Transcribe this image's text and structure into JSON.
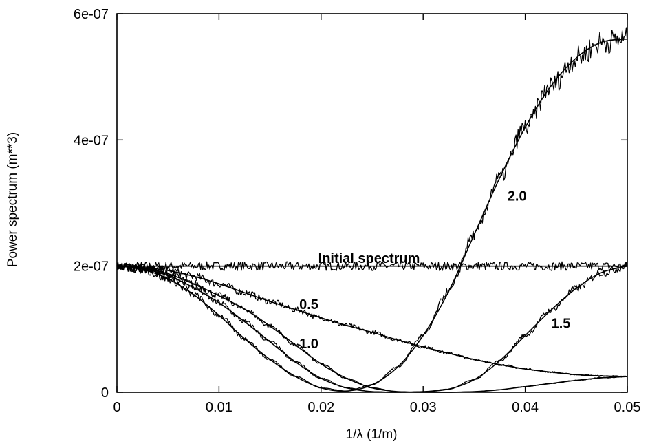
{
  "chart_data": {
    "type": "line",
    "title": "",
    "xlabel": "1/λ   (1/m)",
    "ylabel": "Power spectrum  (m**3)",
    "xlim": [
      0,
      0.05
    ],
    "ylim": [
      0,
      6e-07
    ],
    "x_ticks": [
      {
        "value": 0,
        "label": "0"
      },
      {
        "value": 0.01,
        "label": "0.01"
      },
      {
        "value": 0.02,
        "label": "0.02"
      },
      {
        "value": 0.03,
        "label": "0.03"
      },
      {
        "value": 0.04,
        "label": "0.04"
      },
      {
        "value": 0.05,
        "label": "0.05"
      }
    ],
    "y_ticks": [
      {
        "value": 0,
        "label": "0"
      },
      {
        "value": 2e-07,
        "label": "2e-07"
      },
      {
        "value": 4e-07,
        "label": "4e-07"
      },
      {
        "value": 6e-07,
        "label": "6e-07"
      }
    ],
    "grid": false,
    "x": [
      0,
      0.0025,
      0.005,
      0.0075,
      0.01,
      0.0125,
      0.015,
      0.0175,
      0.02,
      0.0225,
      0.025,
      0.0275,
      0.03,
      0.0325,
      0.035,
      0.0375,
      0.04,
      0.0425,
      0.045,
      0.0475,
      0.05
    ],
    "series": [
      {
        "name": "Initial spectrum",
        "values": [
          2e-07,
          2e-07,
          2e-07,
          2e-07,
          2e-07,
          2e-07,
          2e-07,
          2e-07,
          2e-07,
          2e-07,
          2e-07,
          2e-07,
          2e-07,
          2e-07,
          2e-07,
          2e-07,
          2e-07,
          2e-07,
          2e-07,
          2e-07,
          2e-07
        ]
      },
      {
        "name": "0.5",
        "values": [
          2e-07,
          1.98e-07,
          1.93e-07,
          1.84e-07,
          1.72e-07,
          1.58e-07,
          1.44e-07,
          1.31e-07,
          1.18e-07,
          1.06e-07,
          9.5e-08,
          8.3e-08,
          7.2e-08,
          6.2e-08,
          5.2e-08,
          4.4e-08,
          3.7e-08,
          3.2e-08,
          2.8e-08,
          2.6e-08,
          2.5e-08
        ]
      },
      {
        "name": "1.0",
        "values": [
          2e-07,
          1.97e-07,
          1.88e-07,
          1.72e-07,
          1.53e-07,
          1.32e-07,
          1.05e-07,
          7.5e-08,
          4.5e-08,
          2.2e-08,
          7e-09,
          1e-09,
          0.0,
          0.0,
          1e-09,
          4e-09,
          9e-09,
          1.4e-08,
          1.9e-08,
          2.3e-08,
          2.5e-08
        ]
      },
      {
        "name": "1.5",
        "values": [
          2e-07,
          1.96e-07,
          1.85e-07,
          1.66e-07,
          1.42e-07,
          1.12e-07,
          8e-08,
          4.8e-08,
          2.2e-08,
          7e-09,
          1e-09,
          0.0,
          1e-09,
          5e-09,
          2e-08,
          5e-08,
          9e-08,
          1.3e-07,
          1.65e-07,
          1.9e-07,
          2e-07
        ]
      },
      {
        "name": "2.0",
        "values": [
          2e-07,
          1.95e-07,
          1.8e-07,
          1.55e-07,
          1.22e-07,
          8.5e-08,
          5.2e-08,
          2.5e-08,
          7e-09,
          2e-09,
          1.2e-08,
          4e-08,
          9e-08,
          1.6e-07,
          2.5e-07,
          3.4e-07,
          4.2e-07,
          4.85e-07,
          5.3e-07,
          5.55e-07,
          5.6e-07
        ]
      }
    ],
    "annotations": [
      {
        "text": "Initial spectrum",
        "x": 0.0247,
        "y": 2.05e-07
      },
      {
        "text": "0.5",
        "x": 0.0188,
        "y": 1.32e-07
      },
      {
        "text": "1.0",
        "x": 0.0188,
        "y": 7e-08
      },
      {
        "text": "1.5",
        "x": 0.0435,
        "y": 1.02e-07
      },
      {
        "text": "2.0",
        "x": 0.0392,
        "y": 3.04e-07
      }
    ]
  }
}
